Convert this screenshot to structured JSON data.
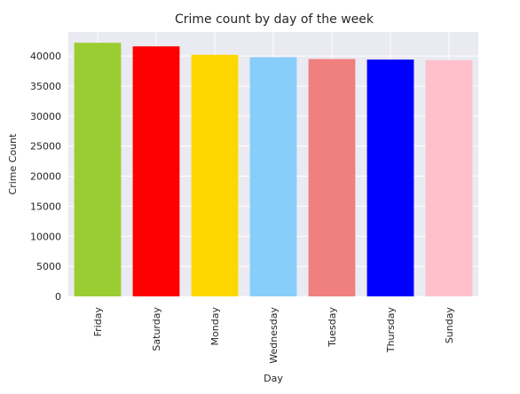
{
  "chart_data": {
    "type": "bar",
    "title": "Crime count by day of the week",
    "xlabel": "Day",
    "ylabel": "Crime Count",
    "categories": [
      "Friday",
      "Saturday",
      "Monday",
      "Wednesday",
      "Tuesday",
      "Thursday",
      "Sunday"
    ],
    "values": [
      42200,
      41600,
      40200,
      39800,
      39500,
      39400,
      39300
    ],
    "colors": [
      "#9acd32",
      "#ff0000",
      "#ffd700",
      "#87cefa",
      "#f08080",
      "#0000ff",
      "#ffc0cb"
    ],
    "yticks": [
      0,
      5000,
      10000,
      15000,
      20000,
      25000,
      30000,
      35000,
      40000
    ],
    "ylim": [
      0,
      44000
    ],
    "grid": true,
    "background": "#eaeaf2"
  }
}
